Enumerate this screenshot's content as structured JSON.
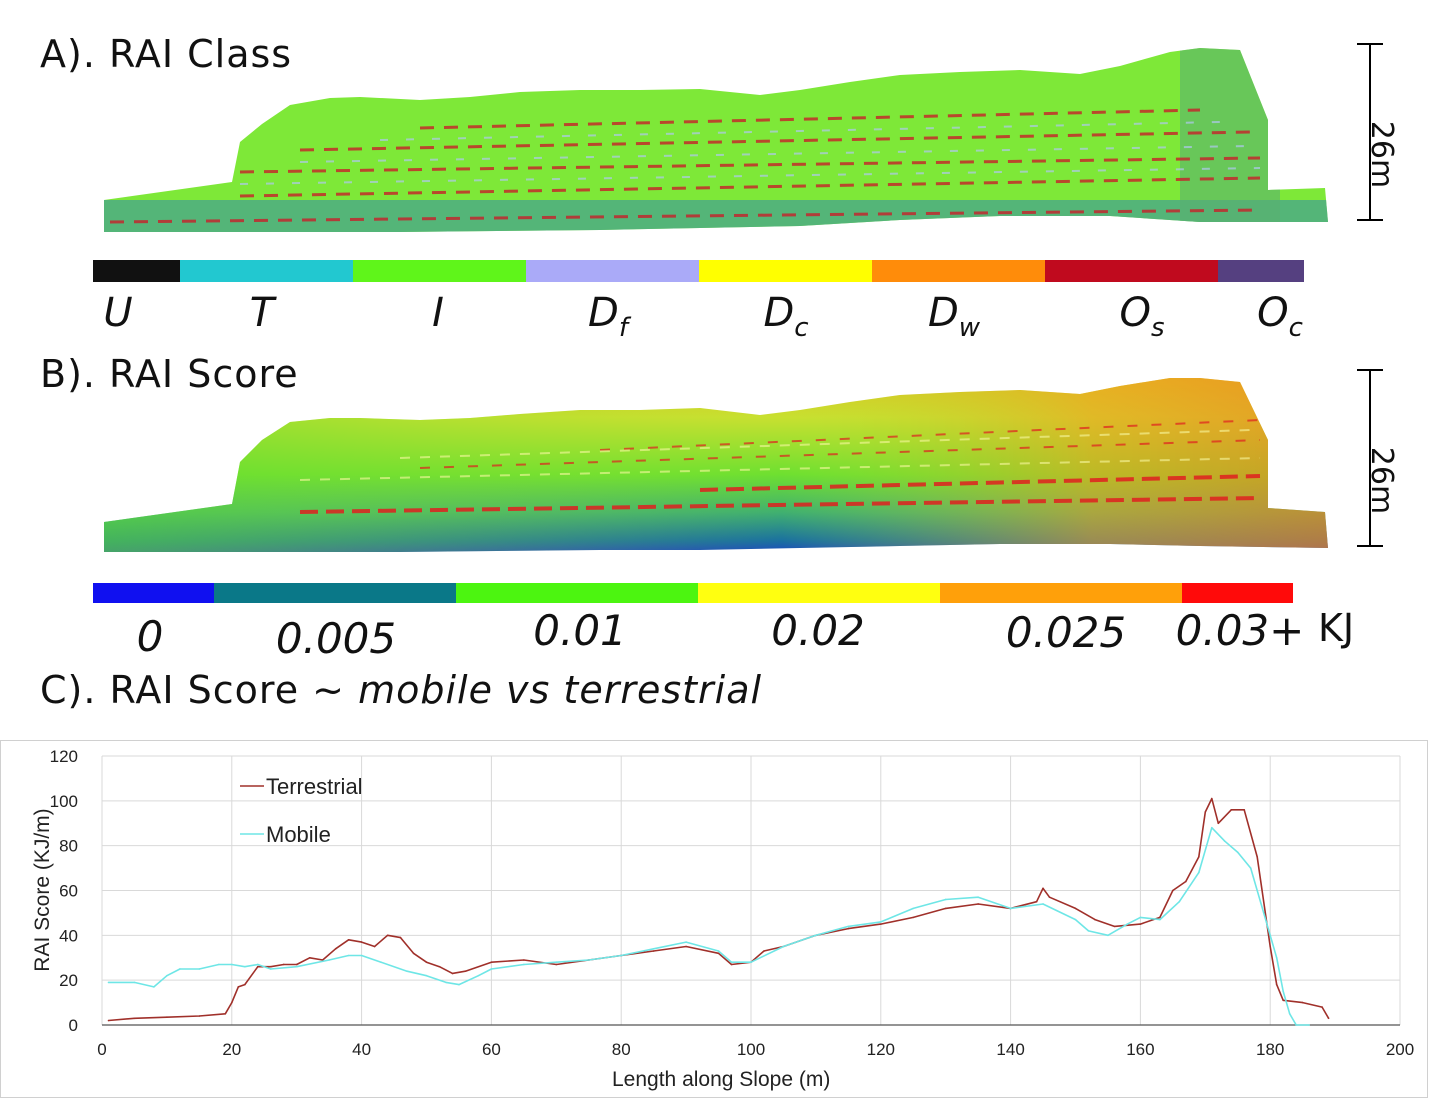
{
  "panels": {
    "a_title": "A). RAI Class",
    "b_title": "B). RAI Score",
    "c_title_prefix": "C). RAI Score ~ ",
    "c_title_italic": "mobile vs terrestrial"
  },
  "scale_bar": {
    "label": "26m"
  },
  "class_legend": {
    "items": [
      {
        "main": "U",
        "sub": "",
        "color": "#111111"
      },
      {
        "main": "T",
        "sub": "",
        "color": "#22c8d0"
      },
      {
        "main": "I",
        "sub": "",
        "color": "#5ff51a"
      },
      {
        "main": "D",
        "sub": "f",
        "color": "#aaaaf8"
      },
      {
        "main": "D",
        "sub": "c",
        "color": "#ffff00"
      },
      {
        "main": "D",
        "sub": "w",
        "color": "#ff8c0a"
      },
      {
        "main": "O",
        "sub": "s",
        "color": "#c00a1e"
      },
      {
        "main": "O",
        "sub": "c",
        "color": "#554080"
      }
    ]
  },
  "score_legend": {
    "segments": [
      {
        "label": "0",
        "color": "#1010f0"
      },
      {
        "label": "0.005",
        "color": "#0a7888"
      },
      {
        "label": "0.01",
        "color": "#4cf510"
      },
      {
        "label": "0.02",
        "color": "#ffff10"
      },
      {
        "label": "0.025",
        "color": "#ffa00a"
      },
      {
        "label": "0.03+",
        "color": "#ff0a0a"
      }
    ],
    "unit": "KJ"
  },
  "chart_data": {
    "type": "line",
    "title": "",
    "xlabel": "Length along Slope (m)",
    "ylabel": "RAI Score (KJ/m)",
    "xlim": [
      0,
      200
    ],
    "ylim": [
      0,
      120
    ],
    "xticks": [
      0,
      20,
      40,
      60,
      80,
      100,
      120,
      140,
      160,
      180,
      200
    ],
    "yticks": [
      0,
      20,
      40,
      60,
      80,
      100,
      120
    ],
    "grid": true,
    "legend_position": "top-left",
    "series": [
      {
        "name": "Terrestrial",
        "color": "#a0302a",
        "x": [
          1,
          5,
          10,
          15,
          19,
          20,
          21,
          22,
          24,
          26,
          28,
          30,
          32,
          34,
          36,
          38,
          40,
          42,
          44,
          46,
          48,
          50,
          52,
          54,
          56,
          60,
          65,
          70,
          75,
          80,
          85,
          90,
          95,
          97,
          100,
          102,
          105,
          110,
          115,
          120,
          125,
          130,
          135,
          140,
          144,
          145,
          146,
          150,
          153,
          156,
          160,
          163,
          165,
          167,
          169,
          170,
          171,
          172,
          174,
          176,
          178,
          180,
          181,
          182,
          185,
          188,
          189
        ],
        "y": [
          2,
          3,
          3.5,
          4,
          5,
          10,
          17,
          18,
          26,
          26,
          27,
          27,
          30,
          29,
          34,
          38,
          37,
          35,
          40,
          39,
          32,
          28,
          26,
          23,
          24,
          28,
          29,
          27,
          29,
          31,
          33,
          35,
          32,
          27,
          28,
          33,
          35,
          40,
          43,
          45,
          48,
          52,
          54,
          52,
          55,
          61,
          57,
          52,
          47,
          44,
          45,
          48,
          60,
          64,
          75,
          95,
          101,
          90,
          96,
          96,
          75,
          35,
          18,
          11,
          10,
          8,
          3
        ]
      },
      {
        "name": "Mobile",
        "color": "#6ee6e6",
        "x": [
          1,
          5,
          8,
          10,
          12,
          15,
          18,
          20,
          22,
          24,
          26,
          30,
          35,
          38,
          40,
          43,
          47,
          50,
          53,
          55,
          58,
          60,
          65,
          70,
          75,
          80,
          85,
          90,
          95,
          97,
          100,
          105,
          110,
          115,
          120,
          125,
          130,
          135,
          140,
          145,
          150,
          152,
          155,
          158,
          160,
          163,
          166,
          169,
          171,
          173,
          175,
          177,
          179,
          181,
          182,
          183,
          184,
          186
        ],
        "y": [
          19,
          19,
          17,
          22,
          25,
          25,
          27,
          27,
          26,
          27,
          25,
          26,
          29,
          31,
          31,
          28,
          24,
          22,
          19,
          18,
          22,
          25,
          27,
          28,
          29,
          31,
          34,
          37,
          33,
          28,
          28,
          35,
          40,
          44,
          46,
          52,
          56,
          57,
          52,
          54,
          47,
          42,
          40,
          45,
          48,
          47,
          55,
          68,
          88,
          82,
          77,
          70,
          50,
          30,
          15,
          5,
          0,
          0
        ]
      }
    ]
  }
}
